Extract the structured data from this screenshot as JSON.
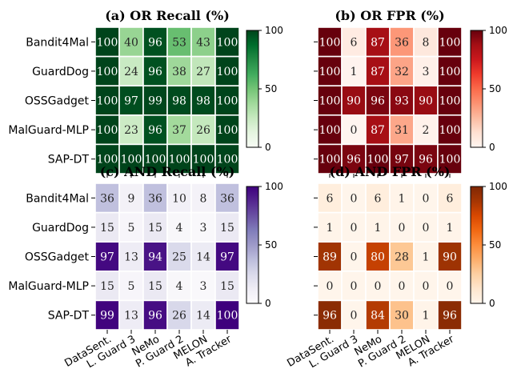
{
  "chart_data": [
    {
      "type": "heatmap",
      "title": "(a) OR  Recall (%)",
      "colormap": "Greens",
      "rows": [
        "Bandit4Mal",
        "GuardDog",
        "OSSGadget",
        "MalGuard-MLP",
        "SAP-DT"
      ],
      "columns": [
        "DataSent.",
        "L. Guard 3",
        "NeMo",
        "P. Guard 2",
        "MELON",
        "A. Tracker"
      ],
      "values": [
        [
          100,
          40,
          96,
          53,
          43,
          100
        ],
        [
          100,
          24,
          96,
          38,
          27,
          100
        ],
        [
          100,
          97,
          99,
          98,
          98,
          100
        ],
        [
          100,
          23,
          96,
          37,
          26,
          100
        ],
        [
          100,
          100,
          100,
          100,
          100,
          100
        ]
      ],
      "colorbar_ticks": [
        "100",
        "50",
        "0"
      ],
      "range": [
        0,
        100
      ]
    },
    {
      "type": "heatmap",
      "title": "(b) OR  FPR (%)",
      "colormap": "Reds",
      "rows": [
        "Bandit4Mal",
        "GuardDog",
        "OSSGadget",
        "MalGuard-MLP",
        "SAP-DT"
      ],
      "columns": [
        "DataSent.",
        "L. Guard 3",
        "NeMo",
        "P. Guard 2",
        "MELON",
        "A. Tracker"
      ],
      "values": [
        [
          100,
          6,
          87,
          36,
          8,
          100
        ],
        [
          100,
          1,
          87,
          32,
          3,
          100
        ],
        [
          100,
          90,
          96,
          93,
          90,
          100
        ],
        [
          100,
          0,
          87,
          31,
          2,
          100
        ],
        [
          100,
          96,
          100,
          97,
          96,
          100
        ]
      ],
      "colorbar_ticks": [
        "100",
        "50",
        "0"
      ],
      "range": [
        0,
        100
      ]
    },
    {
      "type": "heatmap",
      "title": "(c) AND Recall (%)",
      "colormap": "Purples",
      "rows": [
        "Bandit4Mal",
        "GuardDog",
        "OSSGadget",
        "MalGuard-MLP",
        "SAP-DT"
      ],
      "columns": [
        "DataSent.",
        "L. Guard 3",
        "NeMo",
        "P. Guard 2",
        "MELON",
        "A. Tracker"
      ],
      "values": [
        [
          36,
          9,
          36,
          10,
          8,
          36
        ],
        [
          15,
          5,
          15,
          4,
          3,
          15
        ],
        [
          97,
          13,
          94,
          25,
          14,
          97
        ],
        [
          15,
          5,
          15,
          4,
          3,
          15
        ],
        [
          99,
          13,
          96,
          26,
          14,
          100
        ]
      ],
      "colorbar_ticks": [
        "100",
        "50",
        "0"
      ],
      "range": [
        0,
        100
      ]
    },
    {
      "type": "heatmap",
      "title": "(d) AND FPR (%)",
      "colormap": "Oranges",
      "rows": [
        "Bandit4Mal",
        "GuardDog",
        "OSSGadget",
        "MalGuard-MLP",
        "SAP-DT"
      ],
      "columns": [
        "DataSent.",
        "L. Guard 3",
        "NeMo",
        "P. Guard 2",
        "MELON",
        "A. Tracker"
      ],
      "values": [
        [
          6,
          0,
          6,
          1,
          0,
          6
        ],
        [
          1,
          0,
          1,
          0,
          0,
          1
        ],
        [
          89,
          0,
          80,
          28,
          1,
          90
        ],
        [
          0,
          0,
          0,
          0,
          0,
          0
        ],
        [
          96,
          0,
          84,
          30,
          1,
          96
        ]
      ],
      "colorbar_ticks": [
        "100",
        "50",
        "0"
      ],
      "range": [
        0,
        100
      ]
    }
  ]
}
